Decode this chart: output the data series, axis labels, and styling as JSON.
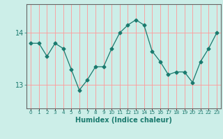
{
  "x": [
    0,
    1,
    2,
    3,
    4,
    5,
    6,
    7,
    8,
    9,
    10,
    11,
    12,
    13,
    14,
    15,
    16,
    17,
    18,
    19,
    20,
    21,
    22,
    23
  ],
  "y": [
    13.8,
    13.8,
    13.55,
    13.8,
    13.7,
    13.3,
    12.9,
    13.1,
    13.35,
    13.35,
    13.7,
    14.0,
    14.15,
    14.25,
    14.15,
    13.65,
    13.45,
    13.2,
    13.25,
    13.25,
    13.05,
    13.45,
    13.7,
    14.0
  ],
  "xlabel": "Humidex (Indice chaleur)",
  "ylabel": "",
  "line_color": "#1a7a6e",
  "marker": "D",
  "marker_size": 2.5,
  "bg_color": "#cceee8",
  "grid_color": "#ff9999",
  "yticks": [
    13,
    14
  ],
  "ylim": [
    12.55,
    14.55
  ],
  "xlim": [
    -0.5,
    23.5
  ]
}
